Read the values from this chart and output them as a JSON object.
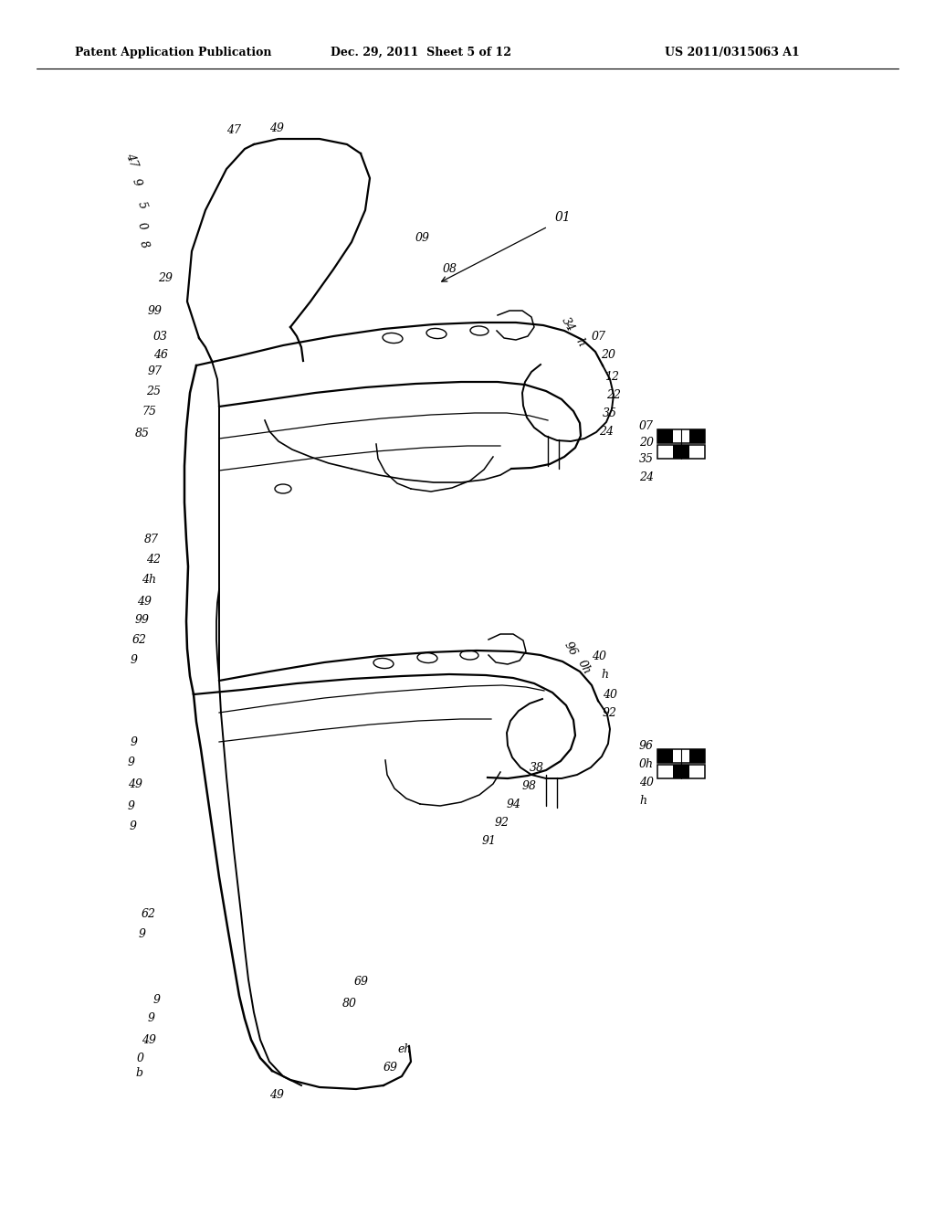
{
  "title_left": "Patent Application Publication",
  "title_mid": "Dec. 29, 2011  Sheet 5 of 12",
  "title_right": "US 2011/0315063 A1",
  "bg_color": "#ffffff",
  "line_color": "#000000"
}
